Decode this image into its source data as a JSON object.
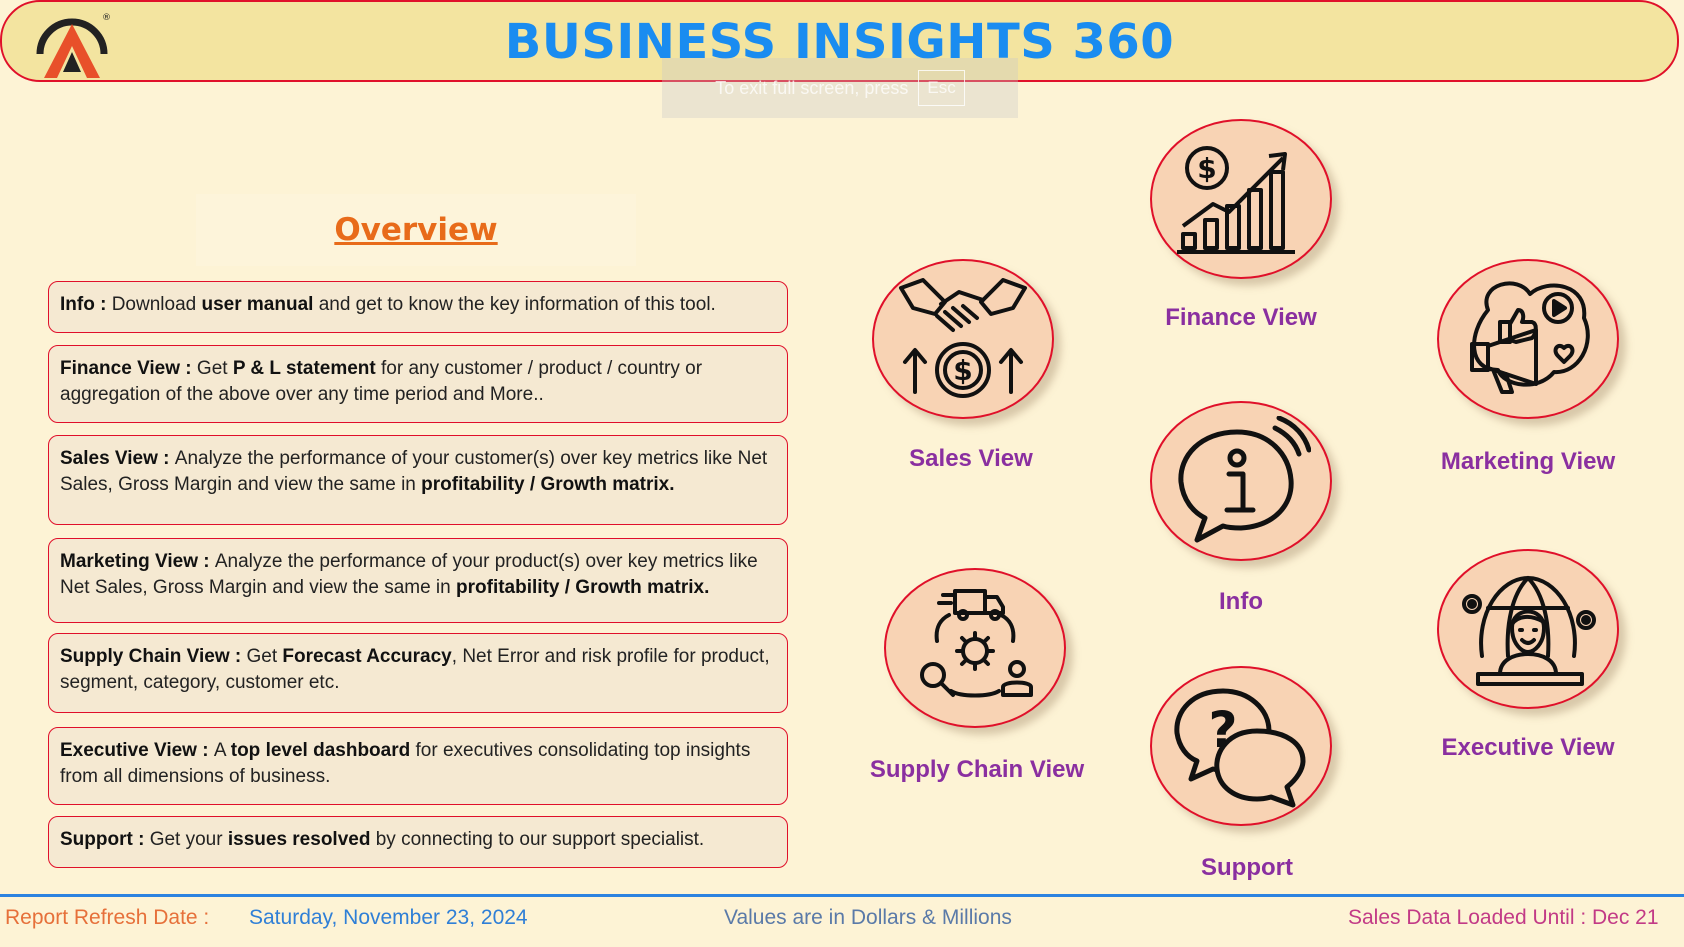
{
  "header": {
    "title": "BUSINESS INSIGHTS 360",
    "logo_icon": "atliq-logo-icon",
    "logo_mark": "®"
  },
  "fullscreen_toast": {
    "text": "To exit full screen, press",
    "key": "Esc"
  },
  "overview": {
    "title": "Overview",
    "cards": [
      {
        "name": "info-card",
        "parts": [
          {
            "text": "Info : ",
            "bold": true
          },
          {
            "text": "Download "
          },
          {
            "text": "user manual",
            "bold": true
          },
          {
            "text": " and get to know the key information of this tool."
          }
        ]
      },
      {
        "name": "finance-view-card",
        "parts": [
          {
            "text": "Finance View : ",
            "bold": true
          },
          {
            "text": "Get  "
          },
          {
            "text": "P & L statement",
            "bold": true
          },
          {
            "text": " for any customer / product / country or aggregation of the above over any time period and More.."
          }
        ]
      },
      {
        "name": "sales-view-card",
        "parts": [
          {
            "text": "Sales View : ",
            "bold": true
          },
          {
            "text": "Analyze the performance of your customer(s) over key metrics like Net Sales, Gross Margin and view the same in "
          },
          {
            "text": "profitability / Growth matrix.",
            "bold": true
          }
        ]
      },
      {
        "name": "marketing-view-card",
        "parts": [
          {
            "text": "Marketing View : ",
            "bold": true
          },
          {
            "text": "Analyze the performance of your product(s) over key metrics like Net Sales, Gross Margin and view the same in "
          },
          {
            "text": "profitability / Growth matrix.",
            "bold": true
          }
        ]
      },
      {
        "name": "supply-chain-view-card",
        "parts": [
          {
            "text": "Supply Chain View : ",
            "bold": true
          },
          {
            "text": "Get "
          },
          {
            "text": "Forecast Accuracy",
            "bold": true
          },
          {
            "text": ", Net Error and risk profile for product, segment, category, customer etc."
          }
        ]
      },
      {
        "name": "executive-view-card",
        "parts": [
          {
            "text": "Executive View : ",
            "bold": true
          },
          {
            "text": "A "
          },
          {
            "text": "top level dashboard",
            "bold": true
          },
          {
            "text": " for executives consolidating top insights from all dimensions of business."
          }
        ]
      },
      {
        "name": "support-card",
        "parts": [
          {
            "text": "Support : ",
            "bold": true
          },
          {
            "text": "Get your "
          },
          {
            "text": "issues resolved",
            "bold": true
          },
          {
            "text": " by connecting to our support specialist."
          }
        ]
      }
    ]
  },
  "nav": {
    "finance": {
      "label": "Finance View",
      "icon": "finance-growth-chart-icon"
    },
    "sales": {
      "label": "Sales View",
      "icon": "handshake-money-icon"
    },
    "marketing": {
      "label": "Marketing View",
      "icon": "megaphone-social-icon"
    },
    "info": {
      "label": "Info",
      "icon": "info-chat-icon"
    },
    "supply_chain": {
      "label": "Supply Chain View",
      "icon": "supply-chain-truck-icon"
    },
    "executive": {
      "label": "Executive View",
      "icon": "executive-globe-icon"
    },
    "support": {
      "label": "Support",
      "icon": "question-chat-icon"
    }
  },
  "footer": {
    "refresh_label": "Report Refresh Date :",
    "refresh_date": "Saturday, November 23, 2024",
    "units_note": "Values are in Dollars & Millions",
    "sales_loaded": "Sales Data Loaded Until : Dec 21"
  },
  "colors": {
    "title_blue": "#1a8cf0",
    "nav_label_purple": "#8a2fa0",
    "overview_orange": "#e86b1a",
    "accent_red": "#e0102a",
    "footer_orange": "#e6703a",
    "footer_blue": "#2f7fd6",
    "footer_slate": "#5a7aa8",
    "footer_pink": "#c23a86"
  }
}
